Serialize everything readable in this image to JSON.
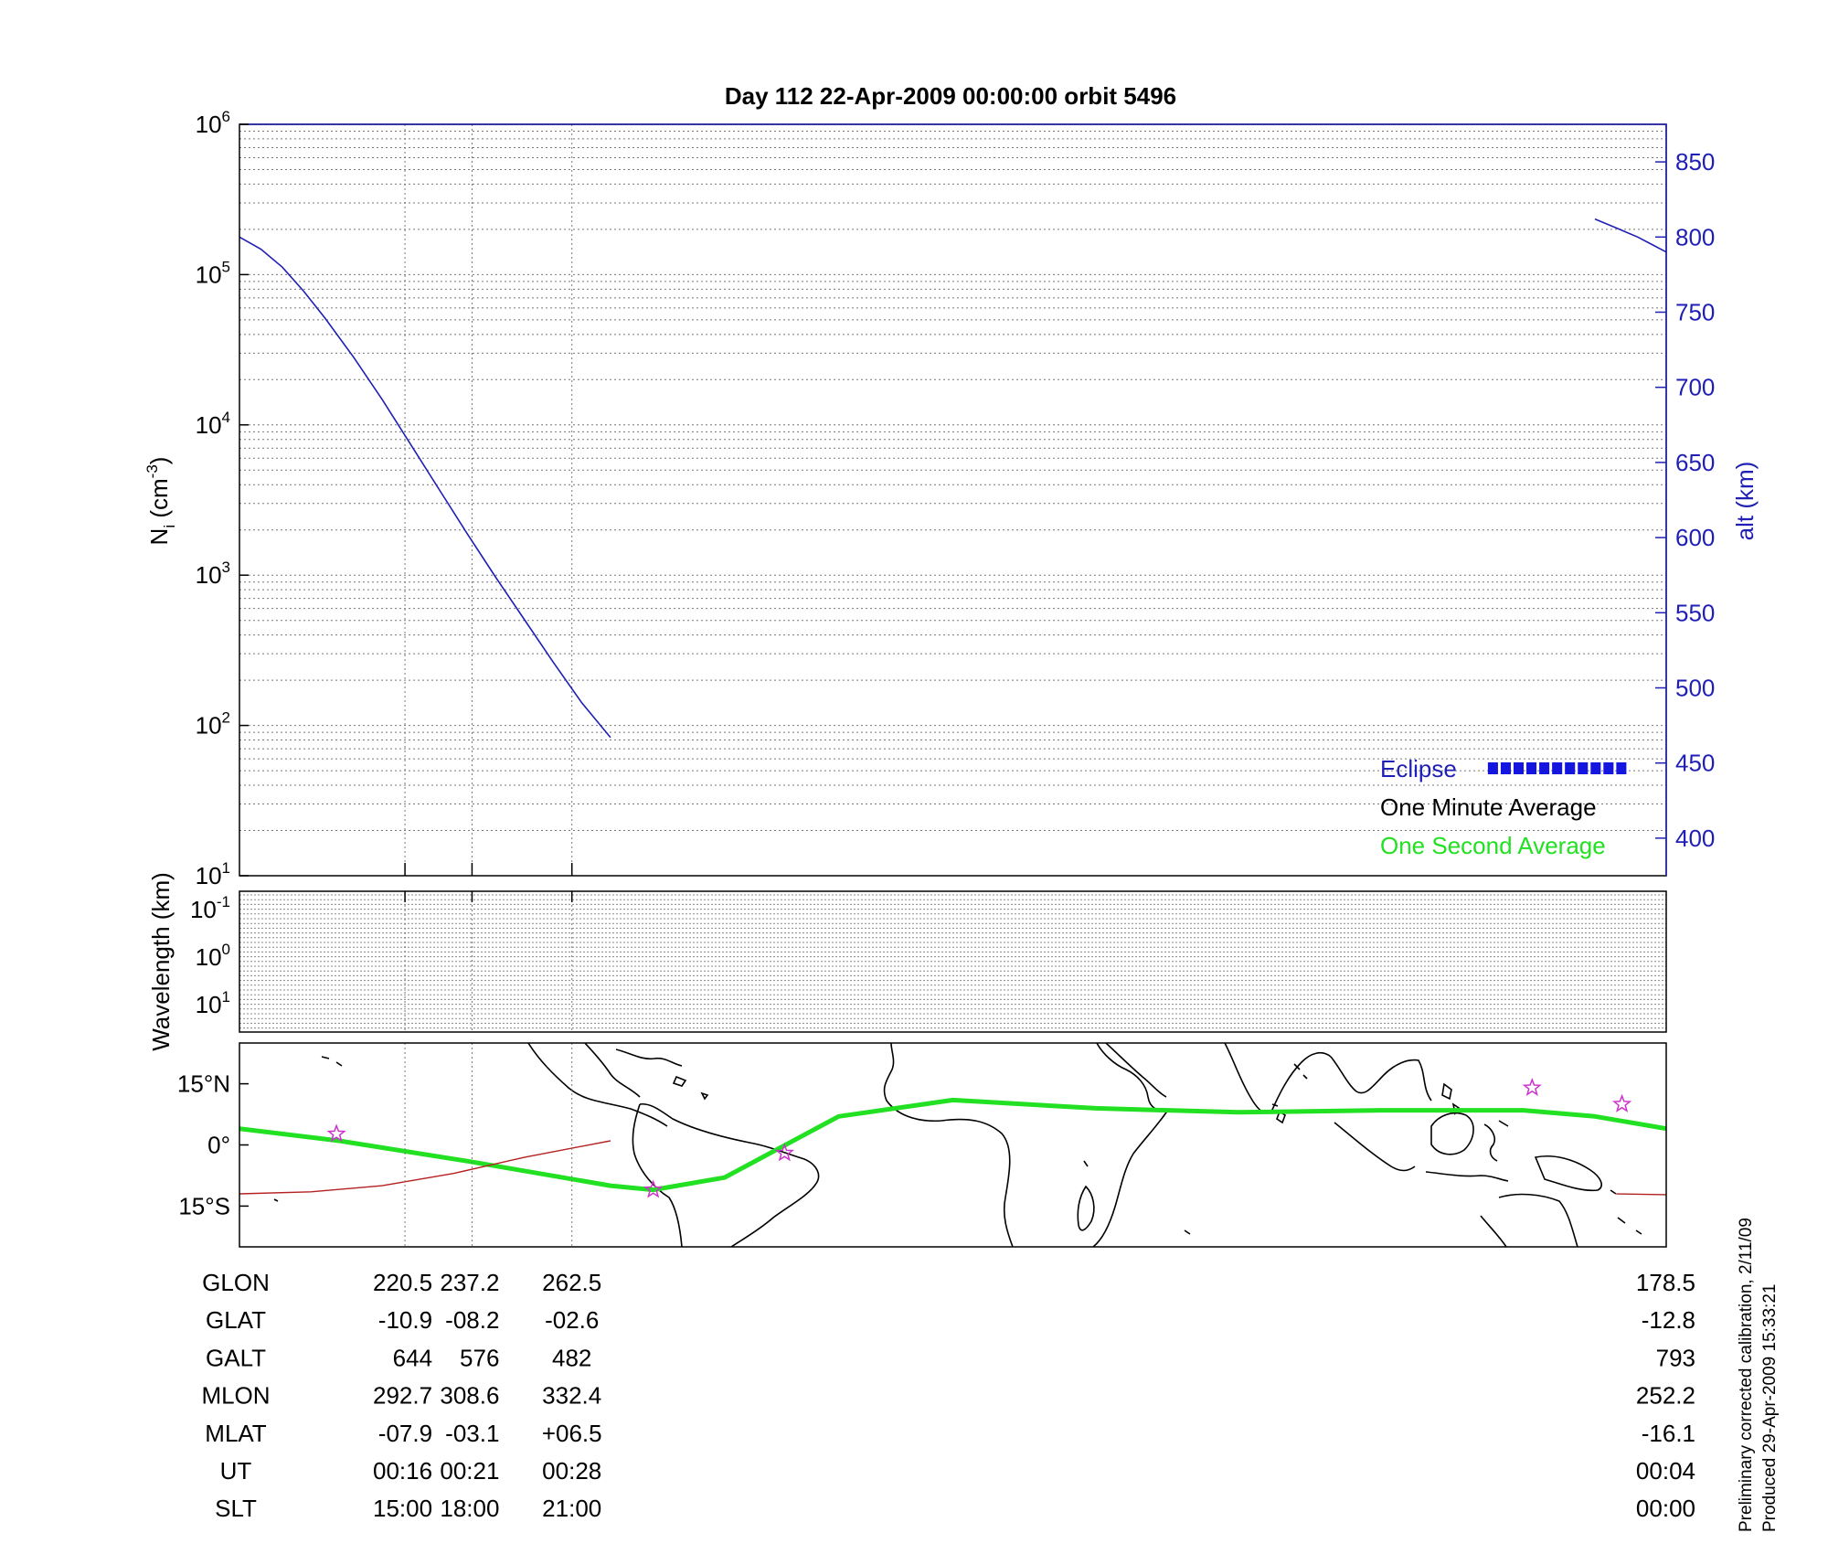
{
  "title": "Day 112  22-Apr-2009 00:00:00   orbit 5496",
  "colors": {
    "altitude": "#1f1fb5",
    "one_minute": "#000000",
    "one_second": "#22e022",
    "eclipse": "#1515e0",
    "ground_track": "#22e022",
    "magnetic_equator": "#b52020",
    "star_marker": "#cc33cc",
    "coastline": "#000000"
  },
  "chart_data": [
    {
      "type": "line",
      "title": "",
      "ylabel": "N_i (cm^-3)",
      "ylabel_main": "N",
      "ylabel_sub": "i",
      "ylabel_unit": " (cm",
      "ylabel_unit_exp": "-3",
      "ylabel_unit_close": ")",
      "yscale": "log",
      "ylim": [
        10,
        1000000
      ],
      "ytick_labels": [
        {
          "base": "10",
          "exp": "6"
        },
        {
          "base": "10",
          "exp": "5"
        },
        {
          "base": "10",
          "exp": "4"
        },
        {
          "base": "10",
          "exp": "3"
        },
        {
          "base": "10",
          "exp": "2"
        },
        {
          "base": "10",
          "exp": "1"
        }
      ],
      "y2label": "alt (km)",
      "y2lim": [
        375,
        875
      ],
      "y2ticks": [
        "850",
        "800",
        "750",
        "700",
        "650",
        "600",
        "550",
        "500",
        "450",
        "400"
      ],
      "xlim": [
        0,
        100
      ],
      "xticks_at": [
        11.6,
        16.3,
        23.3
      ],
      "grid": true,
      "legend_position": "bottom-right",
      "legend": [
        {
          "label": "Eclipse",
          "color": "#1f1fb5"
        },
        {
          "label": "One Minute Average",
          "color": "#000000"
        },
        {
          "label": "One Second Average",
          "color": "#22e022"
        }
      ],
      "eclipse_marker": {
        "x_start": 87.5,
        "x_end": 97.4
      },
      "series": [
        {
          "axis": "alt",
          "segment": "start",
          "color": "#1f1fb5",
          "x": [
            0,
            1.5,
            3,
            4.5,
            6,
            8,
            10,
            12,
            14,
            16,
            18,
            20,
            22,
            24,
            26
          ],
          "y": [
            800,
            792,
            780,
            764,
            746,
            720,
            692,
            662,
            632,
            602,
            573,
            545,
            517,
            490,
            467
          ]
        },
        {
          "axis": "alt",
          "segment": "end",
          "color": "#1f1fb5",
          "x": [
            95,
            96.5,
            98,
            99,
            100
          ],
          "y": [
            812,
            806,
            800,
            795,
            790
          ]
        }
      ]
    },
    {
      "type": "line",
      "title": "",
      "ylabel": "Wavelength (km)",
      "yscale": "log",
      "ytick_labels": [
        {
          "base": "10",
          "exp": "-1"
        },
        {
          "base": "10",
          "exp": "0"
        },
        {
          "base": "10",
          "exp": "1"
        }
      ],
      "xlim": [
        0,
        100
      ],
      "grid": true,
      "series": []
    },
    {
      "type": "line",
      "title": "",
      "ylabel": "",
      "ylim": [
        -25,
        25
      ],
      "yticks": [
        "15°N",
        "0°",
        "15°S"
      ],
      "xlim": [
        0,
        100
      ],
      "series": [
        {
          "name": "",
          "role": "ground track",
          "color": "#22e022",
          "x": [
            0,
            7,
            16,
            26,
            29,
            34,
            42,
            50,
            60,
            70,
            80,
            90,
            95,
            100
          ],
          "y": [
            4,
            1,
            -4,
            -10,
            -11,
            -8,
            7,
            11,
            9,
            8,
            8.5,
            8.5,
            7,
            4
          ]
        },
        {
          "name": "",
          "role": "magnetic equator",
          "color": "#b52020",
          "x": [
            0,
            5,
            10,
            15,
            20,
            26
          ],
          "y": [
            -12,
            -11.5,
            -10,
            -7,
            -3,
            1
          ]
        }
      ],
      "markers": [
        {
          "x": 6.8,
          "y": 2.7
        },
        {
          "x": 29,
          "y": -11
        },
        {
          "x": 38.2,
          "y": -2
        },
        {
          "x": 90.6,
          "y": 14
        },
        {
          "x": 96.9,
          "y": 10
        }
      ]
    }
  ],
  "orbit_table": {
    "row_labels": [
      "GLON",
      "GLAT",
      "GALT",
      "MLON",
      "MLAT",
      "UT",
      "SLT"
    ],
    "columns": [
      {
        "x_frac": 11.6,
        "values": [
          "220.5",
          "-10.9",
          "644",
          "292.7",
          "-07.9",
          "00:16",
          "15:00"
        ]
      },
      {
        "x_frac": 16.3,
        "values": [
          "237.2",
          "-08.2",
          "576",
          "308.6",
          "-03.1",
          "00:21",
          "18:00"
        ]
      },
      {
        "x_frac": 23.3,
        "values": [
          "262.5",
          "-02.6",
          "482",
          "332.4",
          "+06.5",
          "00:28",
          "21:00"
        ]
      },
      {
        "x_frac": 100,
        "values": [
          "178.5",
          "-12.8",
          "793",
          "252.2",
          "-16.1",
          "00:04",
          "00:00"
        ]
      }
    ]
  },
  "footer": {
    "line1": "Preliminary corrected calibration, 2/11/09",
    "line2": "Produced 29-Apr-2009 15:33:21"
  }
}
